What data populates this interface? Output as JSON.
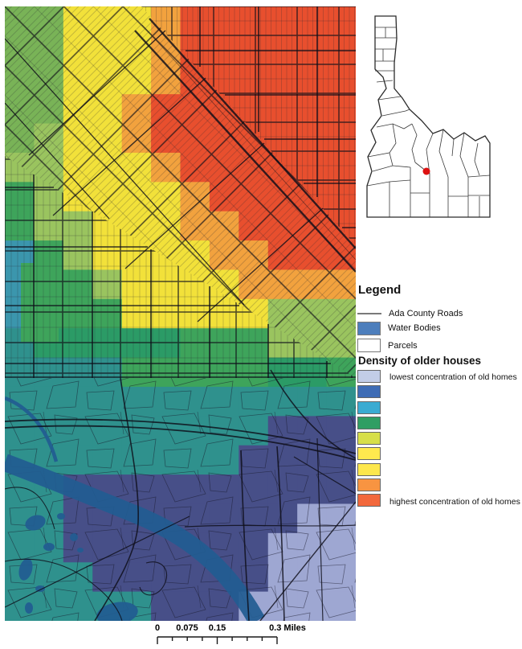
{
  "legend": {
    "title": "Legend",
    "road_item": "Ada County Roads",
    "water_item": "Water Bodies",
    "parcel_item": "Parcels",
    "density_title": "Density of older houses",
    "density_lowest_label": "lowest concentration of old homes",
    "density_highest_label": "highest concentration of old homes",
    "density_colors": [
      "#c2cde7",
      "#3e6cb5",
      "#3aabd2",
      "#2f9e63",
      "#d7df49",
      "#ffe94e",
      "#fde74c",
      "#f89441",
      "#f2683c"
    ],
    "water_color": "#4d7ebc",
    "road_color": "#7a7a7a",
    "parcel_color": "#ffffff"
  },
  "scalebar": {
    "labels": [
      "0",
      "0.075",
      "0.15",
      "0.3 Miles"
    ]
  },
  "inset": {
    "marker_color": "#dd1111",
    "outline_color": "#2b2b2b"
  },
  "map_overlay": {
    "palette": {
      "G": "#79b357",
      "g": "#9ac45f",
      "E": "#3ea45b",
      "D": "#2b9b66",
      "Y": "#f2e13a",
      "O": "#f2a23e",
      "R": "#e84f2e",
      "T": "#2f918d",
      "C": "#3b96ad",
      "N": "#474f88",
      "L": "#9ea7d2"
    },
    "river_color": "#225c91",
    "grid": [
      "GGYYYORRRRRR",
      "GGYYYORRRRRR",
      "GGYYYORRRRRR",
      "GGYYORRRRRRR",
      "GgYYORRRRRRR",
      "ggYYYORRRRRR",
      "EgYYYYORRRRR",
      "EggYYYOORRRR",
      "CEgYYYYOORRR",
      "CEEgYYYYOOOO",
      "CEEEYYYYYggg",
      "TDDDDDEEEggg",
      "TTTTEEEEEDDE",
      "TTTTTTTTTTTT",
      "TTTTTTTTTNNN",
      "TTTTTTTTNNNN",
      "TTNNNNNNNNNN",
      "TTNNNNNNNNLL",
      "TTNNNNNNNLLL",
      "TTTNNNNNNLLL",
      "TTTTTNNNLLLL"
    ]
  }
}
